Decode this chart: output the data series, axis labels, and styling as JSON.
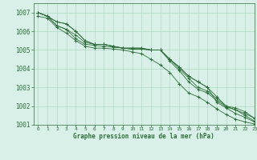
{
  "background_color": "#d8f0e8",
  "grid_color": "#b0d8c4",
  "line_color": "#2d6e3a",
  "marker_color": "#2d6e3a",
  "xlabel": "Graphe pression niveau de la mer (hPa)",
  "xlabel_color": "#2d6e3a",
  "tick_color": "#2d6e3a",
  "ylim": [
    1001,
    1007.5
  ],
  "xlim": [
    -0.5,
    23
  ],
  "yticks": [
    1001,
    1002,
    1003,
    1004,
    1005,
    1006,
    1007
  ],
  "xticks": [
    0,
    1,
    2,
    3,
    4,
    5,
    6,
    7,
    8,
    9,
    10,
    11,
    12,
    13,
    14,
    15,
    16,
    17,
    18,
    19,
    20,
    21,
    22,
    23
  ],
  "series": [
    [
      1007.0,
      1006.8,
      1006.5,
      1006.4,
      1006.0,
      1005.5,
      1005.3,
      1005.3,
      1005.2,
      1005.1,
      1005.1,
      1005.1,
      1005.0,
      1005.0,
      1004.5,
      1004.1,
      1003.6,
      1003.3,
      1003.0,
      1002.5,
      1002.0,
      1001.8,
      1001.5,
      1001.2
    ],
    [
      1007.0,
      1006.8,
      1006.5,
      1006.4,
      1006.0,
      1005.5,
      1005.3,
      1005.3,
      1005.2,
      1005.1,
      1005.1,
      1005.1,
      1005.0,
      1005.0,
      1004.5,
      1004.1,
      1003.6,
      1003.3,
      1003.0,
      1002.2,
      1001.9,
      1001.6,
      1001.4,
      1001.15
    ],
    [
      1007.0,
      1006.8,
      1006.3,
      1006.1,
      1005.8,
      1005.4,
      1005.3,
      1005.3,
      1005.2,
      1005.1,
      1005.05,
      1005.05,
      1005.0,
      1005.0,
      1004.5,
      1004.0,
      1003.5,
      1003.0,
      1002.8,
      1002.4,
      1002.0,
      1001.9,
      1001.7,
      1001.35
    ],
    [
      1007.0,
      1006.8,
      1006.3,
      1006.1,
      1005.6,
      1005.3,
      1005.25,
      1005.2,
      1005.15,
      1005.1,
      1005.05,
      1005.05,
      1005.0,
      1005.0,
      1004.4,
      1003.9,
      1003.3,
      1002.9,
      1002.7,
      1002.3,
      1001.95,
      1001.8,
      1001.6,
      1001.35
    ],
    [
      1006.8,
      1006.7,
      1006.2,
      1005.9,
      1005.5,
      1005.2,
      1005.1,
      1005.1,
      1005.05,
      1005.0,
      1004.9,
      1004.8,
      1004.5,
      1004.2,
      1003.8,
      1003.2,
      1002.7,
      1002.5,
      1002.2,
      1001.85,
      1001.55,
      1001.3,
      1001.15,
      1001.05
    ]
  ]
}
